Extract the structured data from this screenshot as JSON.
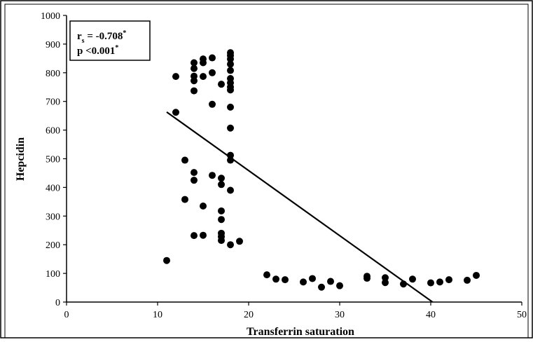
{
  "chart_data": {
    "type": "scatter",
    "xlabel": "Transferrin saturation",
    "ylabel": "Hepcidin",
    "xlim": [
      0,
      50
    ],
    "ylim": [
      0,
      1000
    ],
    "xticks": [
      "0",
      "10",
      "20",
      "30",
      "40",
      "50"
    ],
    "yticks": [
      "0",
      "100",
      "200",
      "300",
      "400",
      "500",
      "600",
      "700",
      "800",
      "900",
      "1000"
    ],
    "grid": false,
    "legend": "none",
    "point_color": "#000000",
    "annotation": {
      "r_symbol": "r",
      "r_subscript": "s",
      "r_text": " = -0.708",
      "r_sup": "*",
      "p_text": "p <0.001",
      "p_sup": "*",
      "placement": "top-left"
    },
    "trendline": {
      "x": [
        11,
        40.2
      ],
      "y": [
        663,
        0
      ]
    },
    "points": [
      [
        11,
        145
      ],
      [
        12,
        662
      ],
      [
        12,
        787
      ],
      [
        13,
        495
      ],
      [
        13,
        358
      ],
      [
        14,
        835
      ],
      [
        14,
        815
      ],
      [
        14,
        788
      ],
      [
        14,
        772
      ],
      [
        14,
        737
      ],
      [
        14,
        452
      ],
      [
        14,
        425
      ],
      [
        14,
        232
      ],
      [
        15,
        848
      ],
      [
        15,
        835
      ],
      [
        15,
        787
      ],
      [
        15,
        335
      ],
      [
        15,
        233
      ],
      [
        16,
        852
      ],
      [
        16,
        800
      ],
      [
        16,
        690
      ],
      [
        16,
        442
      ],
      [
        17,
        760
      ],
      [
        17,
        432
      ],
      [
        17,
        410
      ],
      [
        17,
        318
      ],
      [
        17,
        288
      ],
      [
        17,
        240
      ],
      [
        17,
        228
      ],
      [
        17,
        215
      ],
      [
        18,
        870
      ],
      [
        18,
        860
      ],
      [
        18,
        848
      ],
      [
        18,
        830
      ],
      [
        18,
        808
      ],
      [
        18,
        780
      ],
      [
        18,
        765
      ],
      [
        18,
        750
      ],
      [
        18,
        740
      ],
      [
        18,
        680
      ],
      [
        18,
        607
      ],
      [
        18,
        512
      ],
      [
        18,
        495
      ],
      [
        18,
        390
      ],
      [
        18,
        200
      ],
      [
        19,
        212
      ],
      [
        22,
        95
      ],
      [
        23,
        80
      ],
      [
        24,
        78
      ],
      [
        26,
        70
      ],
      [
        27,
        82
      ],
      [
        28,
        52
      ],
      [
        29,
        72
      ],
      [
        30,
        57
      ],
      [
        33,
        90
      ],
      [
        33,
        83
      ],
      [
        35,
        85
      ],
      [
        35,
        68
      ],
      [
        37,
        63
      ],
      [
        38,
        80
      ],
      [
        40,
        67
      ],
      [
        41,
        70
      ],
      [
        42,
        78
      ],
      [
        44,
        76
      ],
      [
        45,
        93
      ]
    ]
  }
}
